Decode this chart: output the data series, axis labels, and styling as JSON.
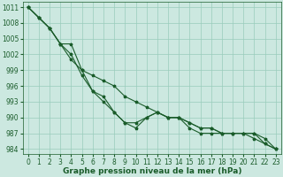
{
  "x": [
    0,
    1,
    2,
    3,
    4,
    5,
    6,
    7,
    8,
    9,
    10,
    11,
    12,
    13,
    14,
    15,
    16,
    17,
    18,
    19,
    20,
    21,
    22,
    23
  ],
  "line1": [
    1011,
    1009,
    1007,
    1004,
    1001,
    999,
    998,
    997,
    996,
    994,
    993,
    992,
    991,
    990,
    990,
    989,
    988,
    988,
    987,
    987,
    987,
    987,
    986,
    984
  ],
  "line2": [
    1011,
    1009,
    1007,
    1004,
    1002,
    998,
    995,
    993,
    991,
    989,
    989,
    990,
    991,
    990,
    990,
    989,
    988,
    988,
    987,
    987,
    987,
    987,
    985,
    984
  ],
  "line3": [
    1011,
    1009,
    1007,
    1004,
    1004,
    999,
    995,
    994,
    991,
    989,
    988,
    990,
    991,
    990,
    990,
    988,
    987,
    987,
    987,
    987,
    987,
    986,
    985,
    984
  ],
  "bg_color": "#cce8e0",
  "grid_color": "#99ccbb",
  "line_color": "#1a5c2a",
  "xlabel": "Graphe pression niveau de la mer (hPa)",
  "ylim": [
    983,
    1012
  ],
  "xlim": [
    -0.5,
    23.5
  ],
  "yticks": [
    984,
    987,
    990,
    993,
    996,
    999,
    1002,
    1005,
    1008,
    1011
  ],
  "xticks": [
    0,
    1,
    2,
    3,
    4,
    5,
    6,
    7,
    8,
    9,
    10,
    11,
    12,
    13,
    14,
    15,
    16,
    17,
    18,
    19,
    20,
    21,
    22,
    23
  ],
  "marker": "*",
  "linewidth": 0.8,
  "markersize": 2.5,
  "tick_fontsize": 5.5,
  "xlabel_fontsize": 6.5
}
